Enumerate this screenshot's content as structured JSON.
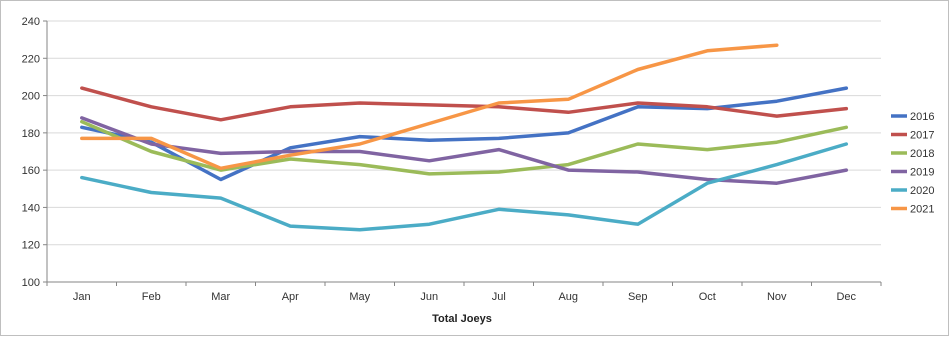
{
  "chart_data": {
    "type": "line",
    "xlabel": "Total Joeys",
    "ylabel": "",
    "ylim": [
      100,
      240
    ],
    "ytick_step": 20,
    "grid": "horizontal",
    "legend_position": "right",
    "categories": [
      "Jan",
      "Feb",
      "Mar",
      "Apr",
      "May",
      "Jun",
      "Jul",
      "Aug",
      "Sep",
      "Oct",
      "Nov",
      "Dec"
    ],
    "series": [
      {
        "name": "2016",
        "color": "#4472C4",
        "values": [
          183,
          175,
          155,
          172,
          178,
          176,
          177,
          180,
          194,
          193,
          197,
          204
        ]
      },
      {
        "name": "2017",
        "color": "#C0504D",
        "values": [
          204,
          194,
          187,
          194,
          196,
          195,
          194,
          191,
          196,
          194,
          189,
          193
        ]
      },
      {
        "name": "2018",
        "color": "#9BBB59",
        "values": [
          186,
          170,
          160,
          166,
          163,
          158,
          159,
          163,
          174,
          171,
          175,
          183
        ]
      },
      {
        "name": "2019",
        "color": "#8064A2",
        "values": [
          188,
          174,
          169,
          170,
          170,
          165,
          171,
          160,
          159,
          155,
          153,
          160
        ]
      },
      {
        "name": "2020",
        "color": "#4BACC6",
        "values": [
          156,
          148,
          145,
          130,
          128,
          131,
          139,
          136,
          131,
          153,
          163,
          174
        ]
      },
      {
        "name": "2021",
        "color": "#F79646",
        "values": [
          177,
          177,
          161,
          168,
          174,
          185,
          196,
          198,
          214,
          224,
          227,
          null
        ]
      }
    ]
  }
}
